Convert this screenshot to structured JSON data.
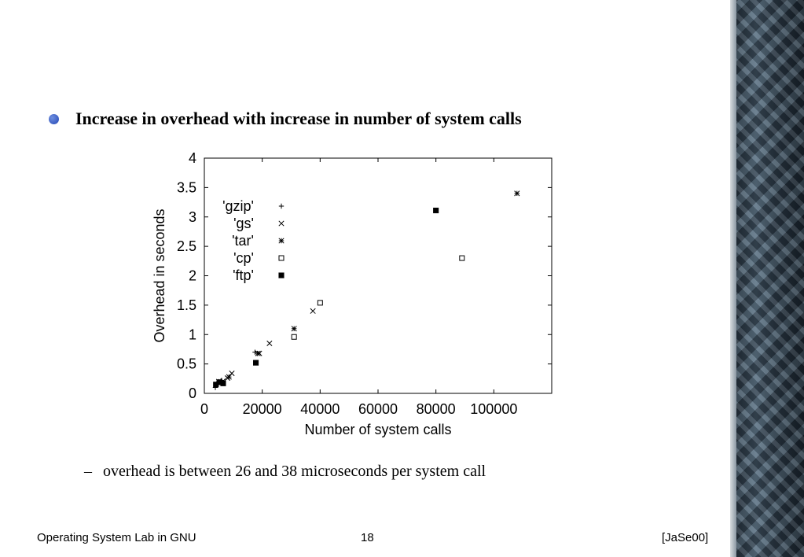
{
  "bullet": {
    "text": "Increase in overhead with increase in number of system calls",
    "bullet_color": "#3355cc"
  },
  "subbullet": {
    "dash": "–",
    "text": "overhead is between 26 and 38 microseconds per system call"
  },
  "footer": {
    "left": "Operating System Lab in GNU",
    "page": "18",
    "right": "[JaSe00]"
  },
  "chart_data": {
    "type": "scatter",
    "title": "",
    "xlabel": "Number of system calls",
    "ylabel": "Overhead in seconds",
    "xlim": [
      0,
      120000
    ],
    "ylim": [
      0,
      4
    ],
    "xticks": [
      0,
      20000,
      40000,
      60000,
      80000,
      100000
    ],
    "xtick_labels": [
      "0",
      "20000",
      "40000",
      "60000",
      "80000",
      "100000"
    ],
    "yticks": [
      0,
      0.5,
      1,
      1.5,
      2,
      2.5,
      3,
      3.5,
      4
    ],
    "ytick_labels": [
      "0",
      "0.5",
      "1",
      "1.5",
      "2",
      "2.5",
      "3",
      "3.5",
      "4"
    ],
    "grid": false,
    "legend_position": "top-left",
    "series": [
      {
        "name": "'gzip'",
        "marker": "plus",
        "points": [
          [
            3800,
            0.1
          ],
          [
            4500,
            0.15
          ],
          [
            6000,
            0.22
          ],
          [
            17500,
            0.7
          ]
        ]
      },
      {
        "name": "'gs'",
        "marker": "cross",
        "points": [
          [
            6500,
            0.21
          ],
          [
            8000,
            0.26
          ],
          [
            9500,
            0.34
          ],
          [
            19000,
            0.68
          ],
          [
            22500,
            0.85
          ],
          [
            37500,
            1.4
          ]
        ]
      },
      {
        "name": "'tar'",
        "marker": "star",
        "points": [
          [
            5000,
            0.2
          ],
          [
            8500,
            0.28
          ],
          [
            18500,
            0.68
          ],
          [
            31000,
            1.1
          ],
          [
            108000,
            3.4
          ]
        ]
      },
      {
        "name": "'cp'",
        "marker": "square-open",
        "points": [
          [
            31000,
            0.96
          ],
          [
            40000,
            1.54
          ],
          [
            89000,
            2.3
          ]
        ]
      },
      {
        "name": "'ftp'",
        "marker": "square-filled",
        "points": [
          [
            4000,
            0.15
          ],
          [
            5200,
            0.19
          ],
          [
            6500,
            0.17
          ],
          [
            17800,
            0.52
          ],
          [
            80000,
            3.11
          ]
        ]
      }
    ]
  }
}
